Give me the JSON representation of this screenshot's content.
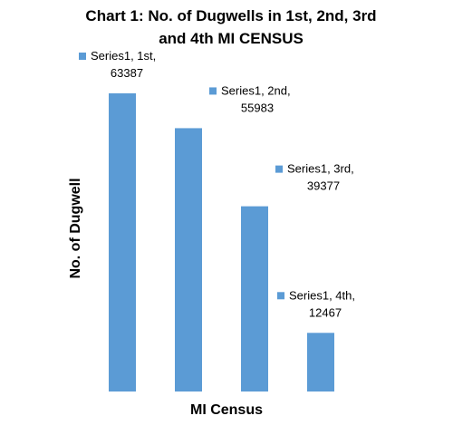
{
  "chart_data": {
    "type": "bar",
    "title_lines": [
      "Chart 1: No. of Dugwells in 1st, 2nd, 3rd",
      "and 4th MI CENSUS"
    ],
    "xlabel": "MI Census",
    "ylabel": "No. of Dugwell",
    "categories": [
      "1st",
      "2nd",
      "3rd",
      "4th"
    ],
    "series": [
      {
        "name": "Series1",
        "values": [
          63387,
          55983,
          39377,
          12467
        ],
        "color": "#5b9bd5"
      }
    ],
    "data_labels": [
      [
        "Series1, 1st,",
        "63387"
      ],
      [
        "Series1, 2nd,",
        "55983"
      ],
      [
        "Series1, 3rd,",
        "39377"
      ],
      [
        "Series1, 4th,",
        "12467"
      ]
    ],
    "ylim": [
      0,
      70000
    ],
    "grid": false,
    "legend": "none"
  }
}
